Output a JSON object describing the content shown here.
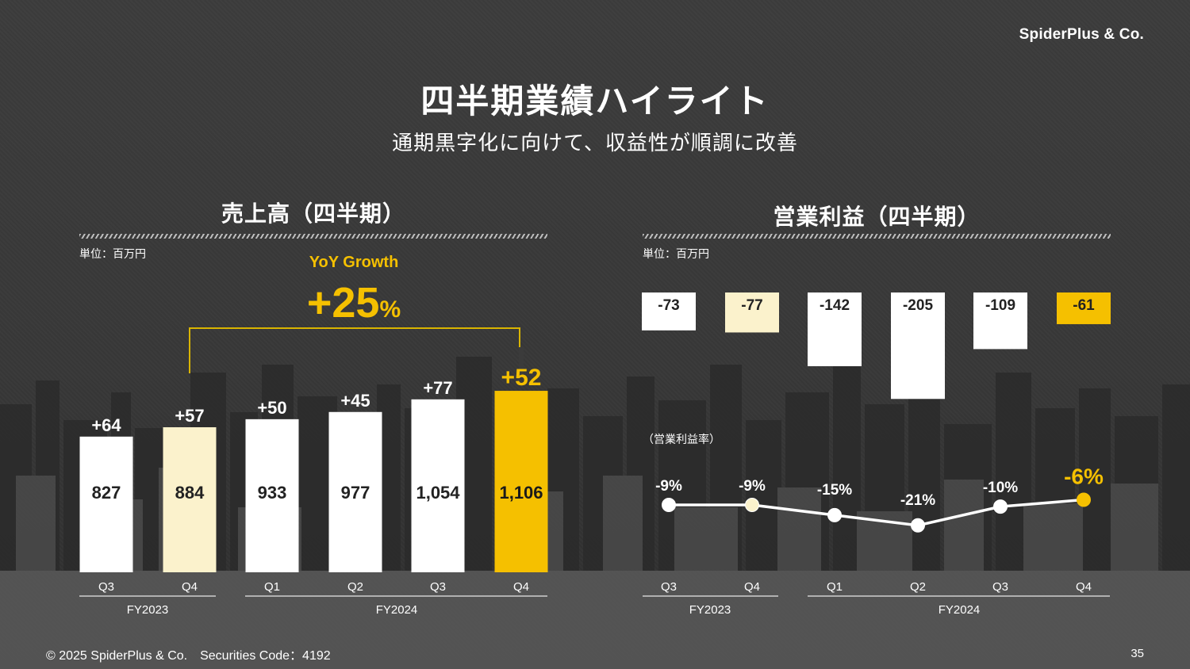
{
  "header": {
    "logo": "SpiderPlus & Co.",
    "title": "四半期業績ハイライト",
    "subtitle": "通期黒字化に向けて、収益性が順調に改善"
  },
  "footer": {
    "copyright": "© 2025 SpiderPlus & Co.　Securities Code：4192",
    "page_number": "35"
  },
  "colors": {
    "highlight": "#f5c000",
    "pale": "#fbf2cc",
    "bar": "#ffffff"
  },
  "chart_data": [
    {
      "type": "bar",
      "title": "売上高（四半期）",
      "unit_label": "単位：百万円",
      "categories": [
        "Q3",
        "Q4",
        "Q1",
        "Q2",
        "Q3",
        "Q4"
      ],
      "groups": [
        {
          "label": "FY2023",
          "categories": [
            "Q3",
            "Q4"
          ]
        },
        {
          "label": "FY2024",
          "categories": [
            "Q1",
            "Q2",
            "Q3",
            "Q4"
          ]
        }
      ],
      "values": [
        827,
        884,
        933,
        977,
        1054,
        1106
      ],
      "value_labels": [
        "827",
        "884",
        "933",
        "977",
        "1,054",
        "1,106"
      ],
      "yoy_increase_labels": [
        "+64",
        "+57",
        "+50",
        "+45",
        "+77",
        "+52"
      ],
      "bar_styles": [
        "white",
        "pale",
        "white",
        "white",
        "white",
        "highlight"
      ],
      "annotation": {
        "label": "YoY Growth",
        "value": "+25",
        "unit": "%"
      }
    },
    {
      "type": "bar",
      "title": "営業利益（四半期）",
      "unit_label": "単位：百万円",
      "categories": [
        "Q3",
        "Q4",
        "Q1",
        "Q2",
        "Q3",
        "Q4"
      ],
      "groups": [
        {
          "label": "FY2023",
          "categories": [
            "Q3",
            "Q4"
          ]
        },
        {
          "label": "FY2024",
          "categories": [
            "Q1",
            "Q2",
            "Q3",
            "Q4"
          ]
        }
      ],
      "values": [
        -73,
        -77,
        -142,
        -205,
        -109,
        -61
      ],
      "value_labels": [
        "-73",
        "-77",
        "-142",
        "-205",
        "-109",
        "-61"
      ],
      "bar_styles": [
        "white",
        "pale",
        "white",
        "white",
        "white",
        "highlight"
      ]
    },
    {
      "type": "line",
      "title": "（営業利益率）",
      "categories": [
        "Q3",
        "Q4",
        "Q1",
        "Q2",
        "Q3",
        "Q4"
      ],
      "values": [
        -9,
        -9,
        -15,
        -21,
        -10,
        -6
      ],
      "value_labels": [
        "-9%",
        "-9%",
        "-15%",
        "-21%",
        "-10%",
        "-6%"
      ],
      "point_styles": [
        "white",
        "pale",
        "white",
        "white",
        "white",
        "highlight"
      ]
    }
  ]
}
